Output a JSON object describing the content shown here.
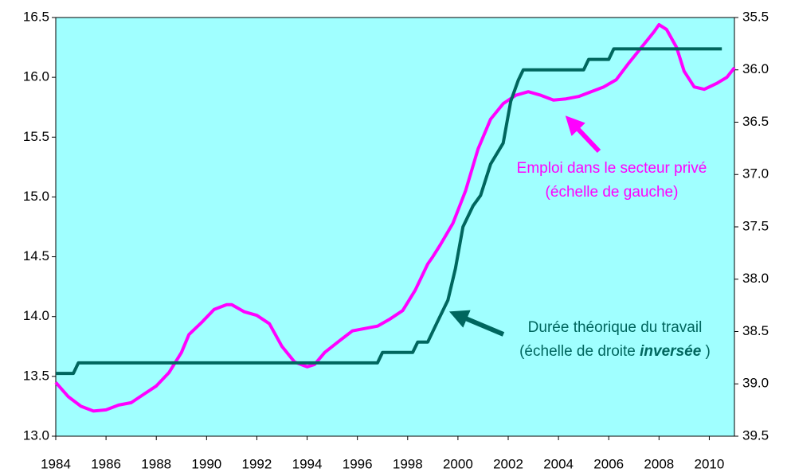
{
  "chart_data": {
    "type": "line",
    "xlim": [
      1984,
      2011
    ],
    "xticks": [
      1984,
      1986,
      1988,
      1990,
      1992,
      1994,
      1996,
      1998,
      2000,
      2002,
      2004,
      2006,
      2008,
      2010
    ],
    "ylim": [
      13,
      16.5
    ],
    "yticks": [
      {
        "value": 13,
        "label": "13.0"
      },
      13.5,
      {
        "value": 14,
        "label": "14.0"
      },
      14.5,
      {
        "value": 15,
        "label": "15.0"
      },
      15.5,
      {
        "value": 16,
        "label": "16.0"
      },
      16.5
    ],
    "y2lim": [
      39.5,
      35.5
    ],
    "y2ticks": [
      35.5,
      {
        "value": 36,
        "label": "36.0"
      },
      36.5,
      {
        "value": 37,
        "label": "37.0"
      },
      37.5,
      {
        "value": 38,
        "label": "38.0"
      },
      38.5,
      {
        "value": 39,
        "label": "39.0"
      },
      39.5
    ],
    "background": "#a0ffff",
    "series": [
      {
        "color": "#ff00ff",
        "axis": "y",
        "x": [
          1984.0,
          1984.5,
          1985.0,
          1985.5,
          1986.0,
          1986.5,
          1987.0,
          1987.5,
          1988.0,
          1988.5,
          1989.0,
          1989.3,
          1989.8,
          1990.3,
          1990.8,
          1991.0,
          1991.5,
          1992.0,
          1992.5,
          1993.0,
          1993.5,
          1994.0,
          1994.3,
          1994.7,
          1995.3,
          1995.8,
          1996.3,
          1996.8,
          1997.3,
          1997.8,
          1998.3,
          1998.8,
          1999.0,
          1999.3,
          1999.8,
          2000.3,
          2000.8,
          2001.3,
          2001.8,
          2002.3,
          2002.8,
          2003.3,
          2003.8,
          2004.3,
          2004.8,
          2005.3,
          2005.8,
          2006.3,
          2006.8,
          2007.3,
          2007.8,
          2008.0,
          2008.3,
          2008.7,
          2009.0,
          2009.4,
          2009.8,
          2010.3,
          2010.7,
          2011.0
        ],
        "values": [
          13.45,
          13.33,
          13.25,
          13.21,
          13.22,
          13.26,
          13.28,
          13.35,
          13.42,
          13.53,
          13.7,
          13.85,
          13.95,
          14.06,
          14.1,
          14.1,
          14.04,
          14.01,
          13.94,
          13.75,
          13.62,
          13.58,
          13.6,
          13.7,
          13.8,
          13.88,
          13.9,
          13.92,
          13.98,
          14.05,
          14.22,
          14.44,
          14.5,
          14.6,
          14.78,
          15.05,
          15.4,
          15.65,
          15.78,
          15.85,
          15.88,
          15.85,
          15.81,
          15.82,
          15.84,
          15.88,
          15.92,
          15.98,
          16.12,
          16.25,
          16.38,
          16.44,
          16.4,
          16.25,
          16.05,
          15.92,
          15.9,
          15.95,
          16.0,
          16.08
        ]
      },
      {
        "color": "#00665e",
        "axis": "y2",
        "x": [
          1984.0,
          1984.7,
          1984.9,
          1996.8,
          1997.0,
          1998.2,
          1998.4,
          1998.8,
          1999.2,
          1999.6,
          1999.9,
          2000.2,
          2000.6,
          2000.9,
          2001.3,
          2001.8,
          2002.1,
          2002.4,
          2002.6,
          2005.0,
          2005.2,
          2006.0,
          2006.2,
          2010.5
        ],
        "values": [
          38.9,
          38.9,
          38.8,
          38.8,
          38.7,
          38.7,
          38.6,
          38.6,
          38.4,
          38.2,
          37.9,
          37.5,
          37.3,
          37.2,
          36.9,
          36.7,
          36.3,
          36.1,
          36.0,
          36.0,
          35.9,
          35.9,
          35.8,
          35.8
        ]
      }
    ],
    "annotations": [
      {
        "lines": [
          "Emploi dans le secteur privé",
          "(échelle de gauche)"
        ]
      },
      {
        "lines": [
          "Durée théorique du travail",
          "(échelle de droite "
        ],
        "emphasis": "inversée",
        "after": " )"
      }
    ]
  }
}
